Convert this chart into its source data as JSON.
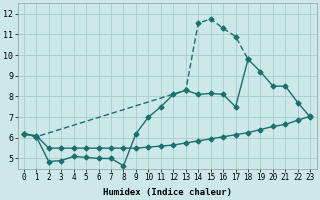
{
  "xlabel": "Humidex (Indice chaleur)",
  "bg_color": "#cce8e8",
  "grid_color": "#aacccc",
  "line_color": "#1a7070",
  "xlim": [
    -0.5,
    23.5
  ],
  "ylim": [
    4.5,
    12.5
  ],
  "xticks": [
    0,
    1,
    2,
    3,
    4,
    5,
    6,
    7,
    8,
    9,
    10,
    11,
    12,
    13,
    14,
    15,
    16,
    17,
    18,
    19,
    20,
    21,
    22,
    23
  ],
  "yticks": [
    5,
    6,
    7,
    8,
    9,
    10,
    11,
    12
  ],
  "line1_x": [
    0,
    1,
    2,
    3,
    4,
    5,
    6,
    7,
    8,
    9,
    10,
    11,
    12,
    13,
    14,
    15,
    16,
    17,
    18,
    19,
    20,
    21,
    22,
    23
  ],
  "line1_y": [
    6.2,
    6.1,
    5.5,
    5.5,
    5.5,
    5.5,
    5.5,
    5.5,
    5.5,
    5.5,
    5.55,
    5.6,
    5.65,
    5.75,
    5.85,
    5.95,
    6.05,
    6.15,
    6.25,
    6.4,
    6.55,
    6.65,
    6.85,
    7.05
  ],
  "line2_x": [
    0,
    1,
    2,
    3,
    4,
    5,
    6,
    7,
    8,
    9,
    10,
    11,
    12,
    13,
    14,
    15,
    16,
    17,
    18,
    19,
    20,
    21,
    22,
    23
  ],
  "line2_y": [
    6.2,
    6.05,
    4.85,
    4.9,
    5.1,
    5.05,
    5.0,
    5.0,
    4.65,
    6.2,
    7.0,
    7.5,
    8.1,
    8.3,
    8.1,
    8.15,
    8.1,
    7.5,
    9.8,
    9.2,
    8.5,
    8.5,
    7.7,
    7.0
  ],
  "line3_x": [
    0,
    1,
    13,
    14,
    15,
    16,
    17,
    18
  ],
  "line3_y": [
    6.2,
    6.05,
    8.3,
    11.55,
    11.75,
    11.3,
    10.9,
    9.8
  ],
  "markersize": 2.5,
  "linewidth": 1.0,
  "tickfontsize": 5.5,
  "xlabelfontsize": 6.5
}
